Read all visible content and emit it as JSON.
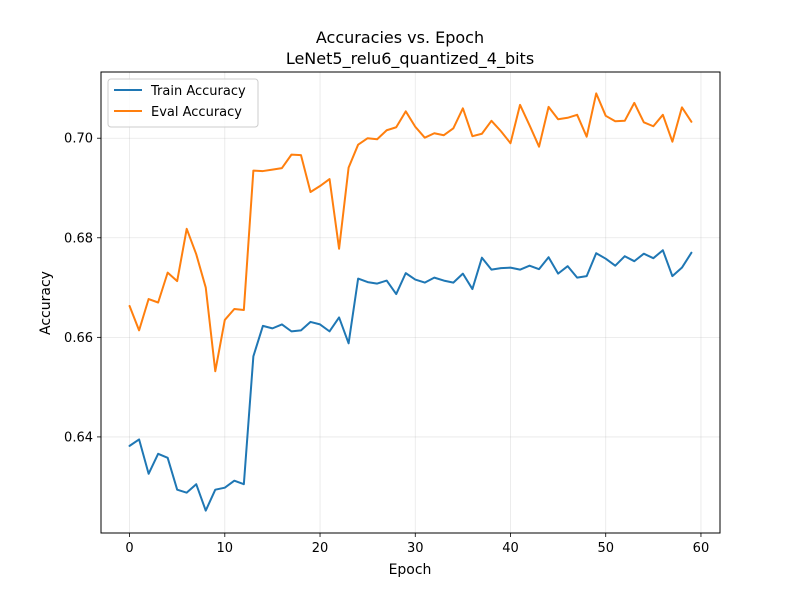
{
  "chart_data": {
    "type": "line",
    "title": "Accuracies vs. Epoch",
    "subtitle": "LeNet5_relu6_quantized_4_bits",
    "xlabel": "Epoch",
    "ylabel": "Accuracy",
    "xlim": [
      -3,
      62
    ],
    "ylim": [
      0.6207,
      0.7133
    ],
    "xticks": [
      0,
      10,
      20,
      30,
      40,
      50,
      60
    ],
    "yticks": [
      0.64,
      0.66,
      0.68,
      0.7
    ],
    "xtick_labels": [
      "0",
      "10",
      "20",
      "30",
      "40",
      "50",
      "60"
    ],
    "ytick_labels": [
      "0.64",
      "0.66",
      "0.68",
      "0.70"
    ],
    "grid": true,
    "legend_placement": "top-left",
    "x": [
      0,
      1,
      2,
      3,
      4,
      5,
      6,
      7,
      8,
      9,
      10,
      11,
      12,
      13,
      14,
      15,
      16,
      17,
      18,
      19,
      20,
      21,
      22,
      23,
      24,
      25,
      26,
      27,
      28,
      29,
      30,
      31,
      32,
      33,
      34,
      35,
      36,
      37,
      38,
      39,
      40,
      41,
      42,
      43,
      44,
      45,
      46,
      47,
      48,
      49,
      50,
      51,
      52,
      53,
      54,
      55,
      56,
      57,
      58,
      59
    ],
    "series": [
      {
        "name": "Train Accuracy",
        "color": "#1f77b4",
        "values": [
          0.6382,
          0.6395,
          0.6326,
          0.6366,
          0.6358,
          0.6294,
          0.6288,
          0.6305,
          0.6252,
          0.6294,
          0.6298,
          0.6312,
          0.6305,
          0.6562,
          0.6623,
          0.6618,
          0.6626,
          0.6612,
          0.6614,
          0.6631,
          0.6626,
          0.6612,
          0.664,
          0.6588,
          0.6718,
          0.6711,
          0.6708,
          0.6714,
          0.6687,
          0.6729,
          0.6716,
          0.671,
          0.672,
          0.6714,
          0.671,
          0.6728,
          0.6697,
          0.676,
          0.6736,
          0.6739,
          0.674,
          0.6736,
          0.6744,
          0.6737,
          0.6761,
          0.6728,
          0.6743,
          0.672,
          0.6723,
          0.6769,
          0.6758,
          0.6744,
          0.6763,
          0.6753,
          0.6768,
          0.6759,
          0.6775,
          0.6723,
          0.674,
          0.677
        ]
      },
      {
        "name": "Eval Accuracy",
        "color": "#ff7f0e",
        "values": [
          0.6663,
          0.6614,
          0.6677,
          0.667,
          0.673,
          0.6713,
          0.6818,
          0.6767,
          0.67,
          0.6532,
          0.6635,
          0.6657,
          0.6655,
          0.6935,
          0.6934,
          0.6937,
          0.694,
          0.6967,
          0.6966,
          0.6892,
          0.6904,
          0.6918,
          0.6778,
          0.6941,
          0.6987,
          0.7,
          0.6998,
          0.7016,
          0.7022,
          0.7054,
          0.7023,
          0.7001,
          0.701,
          0.7006,
          0.702,
          0.706,
          0.7004,
          0.7009,
          0.7035,
          0.7014,
          0.699,
          0.7067,
          0.7026,
          0.6983,
          0.7063,
          0.7038,
          0.7041,
          0.7047,
          0.7003,
          0.709,
          0.7045,
          0.7034,
          0.7035,
          0.7071,
          0.7032,
          0.7024,
          0.7047,
          0.6993,
          0.7062,
          0.7033
        ]
      }
    ]
  }
}
